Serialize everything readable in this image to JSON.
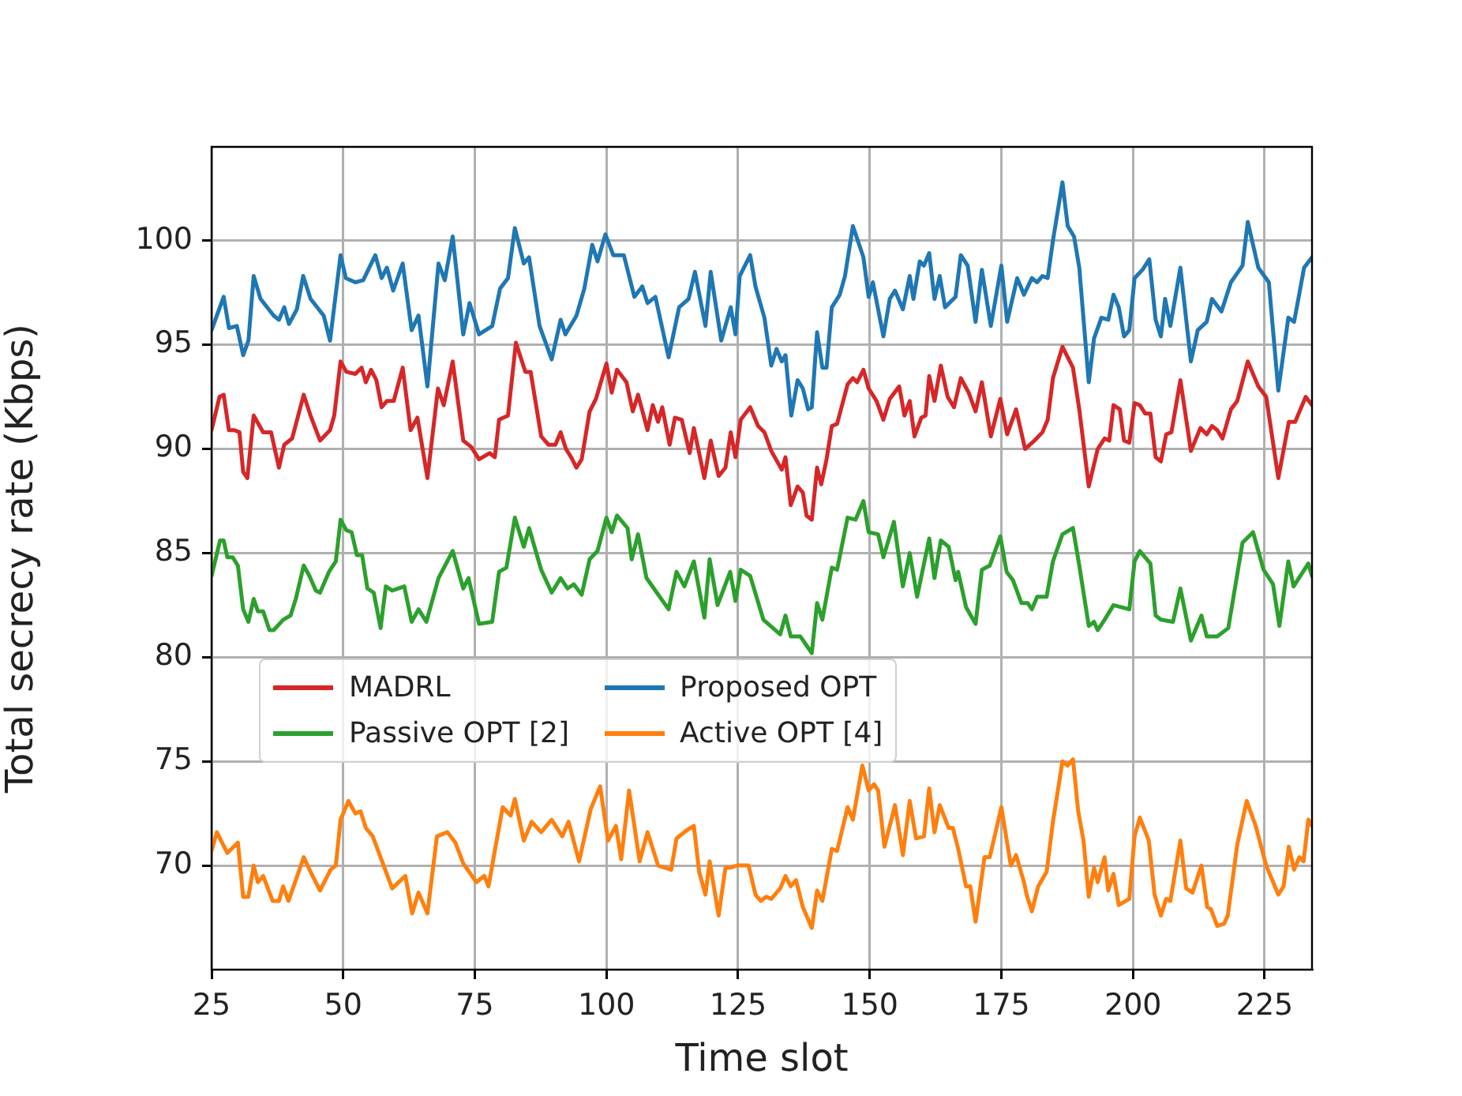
{
  "chart_data": {
    "type": "line",
    "xlabel": "Time slot",
    "ylabel": "Total secrecy rate (Kbps)",
    "xlim": [
      25,
      234
    ],
    "xticks": [
      25,
      50,
      75,
      100,
      125,
      150,
      175,
      200,
      225
    ],
    "ylim": [
      65,
      104.5
    ],
    "yticks": [
      70,
      75,
      80,
      85,
      90,
      95,
      100
    ],
    "grid": true,
    "legend": "lower left",
    "marker": "none",
    "line_style": "solid",
    "series": [
      {
        "name": "MADRL",
        "color": "#d62728",
        "x": [
          25,
          26.5,
          27.3,
          28.3,
          29.3,
          30.3,
          31,
          31.8,
          33,
          34.8,
          36.3,
          37.8,
          38.8,
          40.3,
          42.5,
          43.8,
          45.6,
          47.5,
          48.3,
          49.5,
          50.6,
          52.3,
          53.5,
          54.3,
          55.3,
          56.3,
          57.3,
          58.3,
          59.6,
          61.3,
          62.8,
          64.1,
          66,
          68,
          69.1,
          70.8,
          72.8,
          74.3,
          75.8,
          77.8,
          78.8,
          79.6,
          81.3,
          82.8,
          84.6,
          85.6,
          87.6,
          89,
          90.3,
          91.3,
          92.3,
          93.3,
          94.3,
          95.3,
          96.8,
          98,
          100,
          101,
          102,
          103.8,
          105,
          106,
          107.8,
          108.8,
          109.8,
          110.6,
          112,
          113,
          114.3,
          115.8,
          116.6,
          118.6,
          119.8,
          121.3,
          122.6,
          123.6,
          124.5,
          125.5,
          127.3,
          128.8,
          130,
          131.3,
          133.3,
          134,
          135,
          136.3,
          137.3,
          138,
          139,
          140,
          140.8,
          141.8,
          142.8,
          143.8,
          145.8,
          146.8,
          147.6,
          148.8,
          149.8,
          151.3,
          152.6,
          153.8,
          155.6,
          156.6,
          157.6,
          158.5,
          159.8,
          160.6,
          161.3,
          162.3,
          163.5,
          164.8,
          166,
          167.3,
          168.8,
          170.1,
          171.3,
          173,
          174.8,
          176.1,
          177.8,
          179.5,
          181.3,
          182.8,
          183.8,
          184.8,
          186.6,
          188.6,
          189.8,
          191.6,
          193.3,
          194.6,
          195.5,
          196.3,
          197.5,
          198.3,
          199.3,
          200.3,
          201.3,
          202.3,
          203.3,
          204.3,
          205.3,
          206.3,
          207.3,
          209,
          211,
          212.8,
          214,
          215,
          216,
          217,
          218.6,
          219.8,
          221.8,
          223.8,
          225.3,
          227.6,
          229.6,
          230.8,
          232.8,
          234
        ],
        "values": [
          90.9,
          92.5,
          92.6,
          90.9,
          90.9,
          90.8,
          88.9,
          88.6,
          91.6,
          90.8,
          90.8,
          89.1,
          90.2,
          90.5,
          92.6,
          91.6,
          90.4,
          90.9,
          91.6,
          94.2,
          93.7,
          93.6,
          93.9,
          93.2,
          93.8,
          93.3,
          92,
          92.3,
          92.3,
          93.9,
          90.9,
          91.5,
          88.6,
          92.9,
          92.1,
          94.2,
          90.4,
          90.1,
          89.5,
          89.8,
          89.6,
          91.4,
          91.6,
          95.1,
          93.7,
          93.7,
          90.6,
          90.2,
          90.2,
          90.8,
          90,
          89.6,
          89.1,
          89.5,
          91.8,
          92.4,
          94.1,
          92.7,
          93.8,
          93.2,
          91.8,
          92.6,
          90.9,
          92.1,
          91.3,
          92,
          90.2,
          91.5,
          91.4,
          89.8,
          91,
          88.6,
          90.4,
          88.7,
          89.1,
          90.8,
          89.6,
          91.4,
          92,
          91.1,
          90.8,
          89.9,
          89,
          89.6,
          87.3,
          88.2,
          87.9,
          86.8,
          86.6,
          89.1,
          88.3,
          89.5,
          91.1,
          91.2,
          93.1,
          93.4,
          93.2,
          93.8,
          92.9,
          92.3,
          91.4,
          92.4,
          93,
          91.6,
          92.3,
          90.6,
          91.5,
          91.6,
          93.5,
          92.3,
          94,
          92.5,
          92,
          93.4,
          92.7,
          91.8,
          93.2,
          90.6,
          92.4,
          90.7,
          91.9,
          90,
          90.4,
          90.8,
          91.4,
          93.4,
          94.9,
          93.9,
          91.9,
          88.2,
          90,
          90.5,
          90.4,
          92.1,
          91.9,
          90.4,
          90.3,
          92.2,
          92.1,
          91.7,
          91.7,
          89.6,
          89.4,
          90.7,
          90.8,
          93.3,
          89.9,
          91,
          90.7,
          91.1,
          90.9,
          90.5,
          91.9,
          92.3,
          94.2,
          93,
          92.5,
          88.6,
          91.3,
          91.3,
          92.5,
          92.1
        ]
      },
      {
        "name": "Proposed OPT",
        "color": "#1f77b4",
        "x": [
          25,
          27.3,
          28.3,
          29.8,
          31,
          32,
          33,
          34.3,
          36.8,
          37.8,
          38.8,
          39.7,
          41.2,
          42.4,
          43.8,
          46.3,
          47.5,
          49.5,
          50.5,
          52.3,
          53.8,
          56.1,
          57.3,
          58.3,
          59.5,
          61.3,
          63,
          64.3,
          66,
          68.1,
          69.3,
          70.8,
          72.8,
          74,
          75.8,
          78.3,
          79.8,
          81.3,
          82.6,
          84.3,
          85.3,
          87.3,
          89.6,
          91.3,
          92.2,
          94.3,
          95.8,
          97.3,
          98.3,
          99.8,
          101.3,
          103.3,
          105.3,
          106.8,
          107.8,
          109.3,
          111.8,
          113.8,
          115.6,
          116.8,
          118.8,
          119.8,
          121.8,
          123.6,
          124.5,
          125.3,
          127.3,
          128.3,
          130,
          131.3,
          132.3,
          133.3,
          134,
          135.1,
          136.3,
          137.3,
          138.3,
          139,
          140,
          141,
          141.8,
          142.8,
          144.3,
          145.3,
          146.8,
          148.8,
          149.8,
          150.6,
          152.6,
          153.8,
          154.8,
          156.3,
          157.6,
          158.3,
          159.5,
          160.3,
          161.3,
          162.3,
          163.3,
          164.3,
          166.3,
          167.3,
          168.6,
          170.1,
          171.3,
          173,
          175,
          176.1,
          178,
          179.3,
          180.8,
          181.8,
          182.8,
          183.8,
          184.8,
          186.6,
          187.6,
          188.8,
          189.8,
          191.6,
          192.6,
          194,
          195.3,
          196.3,
          197.3,
          198.3,
          199.3,
          200.3,
          201.8,
          203.1,
          204.3,
          205.3,
          206.1,
          207.1,
          209,
          211,
          212.3,
          214,
          215,
          216.8,
          218.6,
          220.8,
          221.8,
          223.8,
          225.8,
          227.6,
          229.5,
          230.6,
          232.5,
          234
        ],
        "values": [
          95.7,
          97.3,
          95.8,
          95.9,
          94.5,
          95.2,
          98.3,
          97.2,
          96.4,
          96.2,
          96.8,
          96,
          96.7,
          98.3,
          97.2,
          96.4,
          95.2,
          99.3,
          98.2,
          98,
          98.1,
          99.3,
          98.2,
          98.7,
          97.6,
          98.9,
          95.7,
          96.4,
          93,
          98.9,
          98.1,
          100.2,
          95.5,
          97,
          95.5,
          95.9,
          97.7,
          98.2,
          100.6,
          98.9,
          99.2,
          95.9,
          94.3,
          96.2,
          95.5,
          96.4,
          97.7,
          99.8,
          99,
          100.3,
          99.3,
          99.3,
          97.3,
          97.8,
          97,
          97.3,
          94.4,
          96.8,
          97.2,
          98.5,
          95.9,
          98.5,
          95.2,
          96.8,
          95.5,
          98.3,
          99.3,
          97.8,
          96.3,
          94,
          94.8,
          94.2,
          94.5,
          91.6,
          93.3,
          92.9,
          91.9,
          92,
          95.6,
          93.9,
          93.9,
          96.8,
          97.4,
          98.3,
          100.7,
          99.2,
          97.3,
          98,
          95.4,
          97.2,
          97.6,
          96.7,
          98.3,
          97.2,
          99,
          98.8,
          99.4,
          97.2,
          98.3,
          96.8,
          97.3,
          99.3,
          98.8,
          96.1,
          98.6,
          95.9,
          98.8,
          96.1,
          98.2,
          97.4,
          98.2,
          98,
          98.3,
          98.2,
          100,
          102.8,
          100.7,
          100.2,
          98.7,
          93.2,
          95.3,
          96.3,
          96.2,
          97.4,
          96.8,
          95.4,
          95.7,
          98.2,
          98.6,
          99.1,
          96.2,
          95.4,
          97.2,
          95.9,
          98.7,
          94.2,
          95.7,
          96.1,
          97.2,
          96.6,
          98,
          98.8,
          100.9,
          98.7,
          98,
          92.8,
          96.3,
          96.1,
          98.7,
          99.2
        ]
      },
      {
        "name": "Passive OPT [2]",
        "color": "#2ca02c",
        "x": [
          25,
          26.6,
          27.3,
          28,
          29,
          30,
          31,
          32,
          33,
          33.8,
          34.8,
          36,
          36.8,
          38.6,
          40,
          41,
          42.5,
          43.6,
          44.8,
          45.6,
          47.3,
          48.6,
          49.5,
          50.6,
          51.6,
          52.6,
          53.6,
          54.6,
          55.8,
          57.1,
          58.1,
          59.3,
          61.6,
          63,
          64.3,
          65.8,
          68.1,
          70.8,
          72.8,
          73.8,
          75.8,
          78.3,
          79.6,
          81,
          82.6,
          84.3,
          85.3,
          87.6,
          89.6,
          91.3,
          92.6,
          93.8,
          95.3,
          96.8,
          98.3,
          100,
          101,
          102,
          104,
          104.8,
          106,
          107.6,
          111.8,
          113.3,
          114.8,
          116.6,
          118.6,
          119.6,
          121.1,
          123.5,
          124.5,
          125.5,
          127.3,
          129.8,
          133,
          134,
          135,
          136.8,
          139,
          140,
          141,
          142.8,
          143.8,
          145.8,
          147.3,
          148.8,
          149.8,
          151.6,
          152.6,
          154.6,
          156.3,
          157.6,
          159,
          161.3,
          162.3,
          163.5,
          165,
          166.3,
          166.8,
          168.3,
          170.1,
          171.3,
          172.8,
          174.8,
          176,
          177.2,
          178.8,
          180,
          180.8,
          181.8,
          183.6,
          184.8,
          186.6,
          188.6,
          189.8,
          191.6,
          192.6,
          193.3,
          194.6,
          196.3,
          199.3,
          200.3,
          201.3,
          203.3,
          204.3,
          205.3,
          207.6,
          209,
          211,
          213,
          214,
          216,
          218.1,
          220.8,
          222.8,
          224.8,
          226.6,
          227.8,
          229.5,
          230.5,
          233.3,
          234
        ],
        "values": [
          83.9,
          85.6,
          85.6,
          84.8,
          84.8,
          84.4,
          82.3,
          81.7,
          82.8,
          82.2,
          82.2,
          81.3,
          81.3,
          81.8,
          82,
          82.8,
          84.4,
          83.9,
          83.2,
          83.1,
          84.1,
          84.6,
          86.6,
          86.1,
          86,
          84.9,
          84.9,
          83.3,
          83.1,
          81.4,
          83.4,
          83.2,
          83.4,
          81.7,
          82.3,
          81.7,
          83.8,
          85.1,
          83.3,
          83.8,
          81.6,
          81.7,
          84.1,
          84.3,
          86.7,
          85.3,
          86.2,
          84.2,
          83.1,
          83.8,
          83.3,
          83.5,
          83,
          84.7,
          85.1,
          86.7,
          86,
          86.8,
          86.2,
          84.7,
          85.9,
          83.8,
          82.3,
          84.1,
          83.4,
          84.6,
          81.9,
          84.7,
          82.5,
          84.1,
          82.7,
          84.2,
          83.9,
          81.8,
          81.1,
          82,
          81,
          81,
          80.2,
          82.6,
          81.8,
          84.3,
          84.2,
          86.7,
          86.6,
          87.5,
          86,
          85.9,
          84.8,
          86.5,
          83.4,
          85,
          82.9,
          85.7,
          83.8,
          85.6,
          85.3,
          83.7,
          84.1,
          82.4,
          81.6,
          84.2,
          84.4,
          85.8,
          84.1,
          83.7,
          82.6,
          82.6,
          82.3,
          82.9,
          82.9,
          84.6,
          85.9,
          86.2,
          84.4,
          81.5,
          81.7,
          81.3,
          81.8,
          82.5,
          82.3,
          84.6,
          85.1,
          84.5,
          82,
          81.8,
          81.7,
          83.3,
          80.8,
          82,
          81,
          81,
          81.4,
          85.5,
          86,
          84.2,
          83.5,
          81.5,
          84.6,
          83.4,
          84.5,
          83.9
        ]
      },
      {
        "name": "Active OPT [4]",
        "color": "#ff7f0e",
        "x": [
          25,
          26,
          28,
          30,
          31,
          32,
          33,
          33.8,
          34.8,
          36.6,
          37.8,
          38.6,
          39.6,
          41,
          42.5,
          43.8,
          45.6,
          47.6,
          48.6,
          49.5,
          51,
          52.3,
          53.3,
          54.3,
          55.6,
          56.8,
          59.3,
          61.8,
          63.1,
          64.3,
          66,
          67.8,
          69.8,
          71.3,
          72.8,
          75.3,
          76.8,
          77.6,
          79,
          80.3,
          81.8,
          82.6,
          84.3,
          85.8,
          87.6,
          89.6,
          91.6,
          92.8,
          94.8,
          97,
          98.8,
          100.3,
          101.8,
          102.8,
          104.3,
          106.3,
          107.8,
          109.8,
          112.3,
          113.3,
          115.3,
          116.6,
          117.6,
          118.8,
          119.6,
          121.3,
          122.6,
          123.6,
          124.8,
          126,
          127,
          128.3,
          129.3,
          130.3,
          131.3,
          133,
          134,
          135,
          136,
          137.3,
          139,
          140,
          141,
          142.8,
          143.8,
          145.8,
          146.8,
          148.6,
          149.8,
          150.8,
          151.6,
          152.8,
          154.8,
          156.3,
          157.6,
          158.8,
          160.3,
          161.3,
          162.3,
          163.3,
          165,
          165.8,
          166.8,
          168.3,
          169.1,
          170.1,
          171.8,
          172.8,
          175,
          176.8,
          177.8,
          179.3,
          179.8,
          180.8,
          182,
          183.6,
          184.8,
          186.6,
          187.6,
          188.6,
          189.6,
          190.6,
          191.6,
          192.6,
          193.3,
          194.6,
          195.3,
          196.3,
          197.3,
          199.3,
          200.3,
          201.3,
          203,
          204.1,
          205.3,
          206.3,
          207.1,
          209,
          210.1,
          211.3,
          213,
          214.1,
          214.8,
          216,
          217.3,
          218,
          219.8,
          221.6,
          223.3,
          225.3,
          227.6,
          228.6,
          229.6,
          230.6,
          231.6,
          232.4,
          233.3,
          234
        ],
        "values": [
          70.7,
          71.6,
          70.6,
          71.1,
          68.5,
          68.5,
          70,
          69.2,
          69.5,
          68.3,
          68.3,
          69,
          68.3,
          69.3,
          70.4,
          69.7,
          68.8,
          69.8,
          70,
          72.2,
          73.1,
          72.5,
          72.6,
          71.8,
          71.4,
          70.6,
          68.9,
          69.5,
          67.7,
          68.7,
          67.7,
          71.4,
          71.6,
          71.1,
          70.1,
          69.2,
          69.5,
          69,
          71,
          72.8,
          72.4,
          73.2,
          71.2,
          72.1,
          71.6,
          72.2,
          71.4,
          72.1,
          70.2,
          72.7,
          73.8,
          71.2,
          71.9,
          70.3,
          73.6,
          70.2,
          71.6,
          70,
          69.8,
          71.3,
          71.7,
          71.9,
          69.7,
          68.6,
          70.2,
          67.6,
          69.9,
          69.9,
          70,
          70,
          70,
          68.6,
          68.3,
          68.5,
          68.4,
          68.9,
          69.5,
          69,
          69.3,
          68,
          67,
          68.8,
          68.3,
          70.8,
          70.7,
          72.8,
          72.2,
          74.8,
          73.6,
          73.9,
          73.6,
          70.9,
          72.9,
          70.5,
          73.1,
          71.3,
          71.4,
          73.7,
          71.6,
          72.9,
          71.8,
          71.8,
          70.8,
          69,
          69,
          67.3,
          70.4,
          70.4,
          72.8,
          70,
          70.5,
          69.2,
          68.6,
          67.8,
          69,
          69.7,
          72.1,
          75,
          74.8,
          75.1,
          72.6,
          71.2,
          68.5,
          69.9,
          69.2,
          70.4,
          68.8,
          69.6,
          68.1,
          68.4,
          71.4,
          72.3,
          71.2,
          68.6,
          67.6,
          68.4,
          68.3,
          71.2,
          68.9,
          68.7,
          70,
          68,
          67.9,
          67.1,
          67.2,
          67.6,
          71,
          73.1,
          71.9,
          70,
          68.6,
          69,
          70.9,
          69.8,
          70.4,
          70.2,
          72.2,
          71.9
        ]
      }
    ]
  }
}
